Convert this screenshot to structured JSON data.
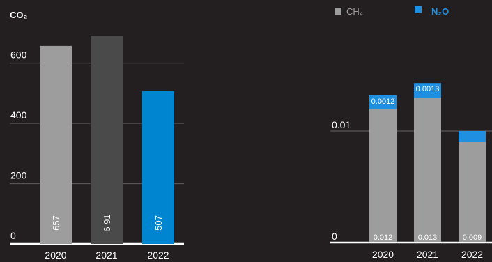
{
  "colors": {
    "background": "#231f20",
    "gridline": "#5a5657",
    "baseline": "#ffffff",
    "text": "#ffffff",
    "bar_2020": "#9d9d9d",
    "bar_2021": "#4a4a4a",
    "bar_2022": "#0085d0",
    "ch4": "#9d9d9d",
    "n2o": "#1e8fe1"
  },
  "chart_data": [
    {
      "type": "bar",
      "title": "CO₂",
      "categories": [
        "2020",
        "2021",
        "2022"
      ],
      "values": [
        657,
        691,
        507
      ],
      "value_labels": [
        "657",
        "6 91",
        "507"
      ],
      "yticks": [
        0,
        200,
        400,
        600
      ],
      "ytick_labels": [
        "0",
        "200",
        "400",
        "600"
      ],
      "ylim": [
        0,
        740
      ],
      "grid": true,
      "value_label_orientation": "vertical"
    },
    {
      "type": "bar",
      "stacked": true,
      "categories": [
        "2020",
        "2021",
        "2022"
      ],
      "series": [
        {
          "name": "CH₄",
          "values": [
            0.012,
            0.013,
            0.009
          ],
          "labels": [
            "0.012",
            "0.013",
            "0.009"
          ]
        },
        {
          "name": "N₂O",
          "values": [
            0.0012,
            0.0013,
            0.001
          ],
          "labels": [
            "0.0012",
            "0.0013",
            ""
          ]
        }
      ],
      "yticks": [
        0,
        0.01
      ],
      "ytick_labels": [
        "0",
        "0.01"
      ],
      "ylim": [
        0,
        0.0145
      ],
      "grid": true,
      "legend": "top"
    }
  ]
}
